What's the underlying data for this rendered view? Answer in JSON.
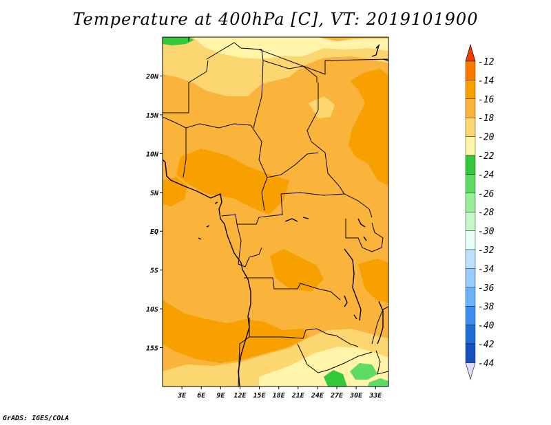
{
  "title": "Temperature at 400hPa [C], VT: 2019101900",
  "credit": "GrADS: IGES/COLA",
  "map": {
    "lon_range": [
      0,
      35
    ],
    "lat_range": [
      -20,
      25
    ],
    "lat_ticks": [
      {
        "value": 20,
        "label": "20N"
      },
      {
        "value": 15,
        "label": "15N"
      },
      {
        "value": 10,
        "label": "10N"
      },
      {
        "value": 5,
        "label": "5N"
      },
      {
        "value": 0,
        "label": "EQ"
      },
      {
        "value": -5,
        "label": "5S"
      },
      {
        "value": -10,
        "label": "10S"
      },
      {
        "value": -15,
        "label": "15S"
      }
    ],
    "lon_ticks": [
      {
        "value": 3,
        "label": "3E"
      },
      {
        "value": 6,
        "label": "6E"
      },
      {
        "value": 9,
        "label": "9E"
      },
      {
        "value": 12,
        "label": "12E"
      },
      {
        "value": 15,
        "label": "15E"
      },
      {
        "value": 18,
        "label": "18E"
      },
      {
        "value": 21,
        "label": "21E"
      },
      {
        "value": 24,
        "label": "24E"
      },
      {
        "value": 27,
        "label": "27E"
      },
      {
        "value": 30,
        "label": "30E"
      },
      {
        "value": 33,
        "label": "33E"
      }
    ]
  },
  "colorbar": {
    "levels": [
      "-12",
      "-14",
      "-16",
      "-18",
      "-20",
      "-22",
      "-24",
      "-26",
      "-28",
      "-30",
      "-32",
      "-34",
      "-36",
      "-38",
      "-40",
      "-42",
      "-44"
    ],
    "colors": [
      "#f03c00",
      "#f87800",
      "#f8a000",
      "#fab43c",
      "#fcd670",
      "#fff4a8",
      "#33c93a",
      "#5ddc62",
      "#96ee96",
      "#c6f7c6",
      "#e8fff8",
      "#bde0ff",
      "#96cdff",
      "#6bb3f8",
      "#3c8ef0",
      "#1f6ed8",
      "#1450c0",
      "#0a2a8e"
    ],
    "top_color": "#f03c00",
    "bottom_color": "#e0dcff"
  },
  "fill_colors": {
    "base": "#fab43c",
    "warm": "#f8a000",
    "cool": "#fcd670",
    "cooler": "#fff4a8",
    "green": "#33c93a",
    "light_green": "#5ddc62"
  }
}
